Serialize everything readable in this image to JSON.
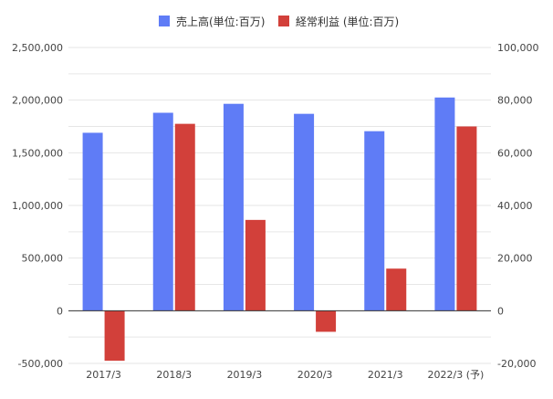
{
  "chart_data": {
    "type": "bar",
    "title": "",
    "categories": [
      "2017/3",
      "2018/3",
      "2019/3",
      "2020/3",
      "2021/3",
      "2022/3 (予)"
    ],
    "series": [
      {
        "name": "売上高(単位:百万)",
        "axis": "left",
        "color": "#5f7cf6",
        "values": [
          1690000,
          1880000,
          1965000,
          1870000,
          1705000,
          2025000
        ]
      },
      {
        "name": "経常利益 (単位:百万)",
        "axis": "right",
        "color": "#d2403a",
        "values": [
          -19000,
          71000,
          34500,
          -8000,
          16000,
          70000
        ]
      }
    ],
    "y_left": {
      "ylim": [
        -500000,
        2500000
      ],
      "ticks": [
        -500000,
        0,
        500000,
        1000000,
        1500000,
        2000000,
        2500000
      ],
      "tick_labels": [
        "-500,000",
        "0",
        "500,000",
        "1,000,000",
        "1,500,000",
        "2,000,000",
        "2,500,000"
      ]
    },
    "y_right": {
      "ylim": [
        -20000,
        100000
      ],
      "ticks": [
        -20000,
        0,
        20000,
        40000,
        60000,
        80000,
        100000
      ],
      "tick_labels": [
        "-20,000",
        "0",
        "20,000",
        "40,000",
        "60,000",
        "80,000",
        "100,000"
      ]
    },
    "legend_position": "top-center",
    "grid": true
  }
}
